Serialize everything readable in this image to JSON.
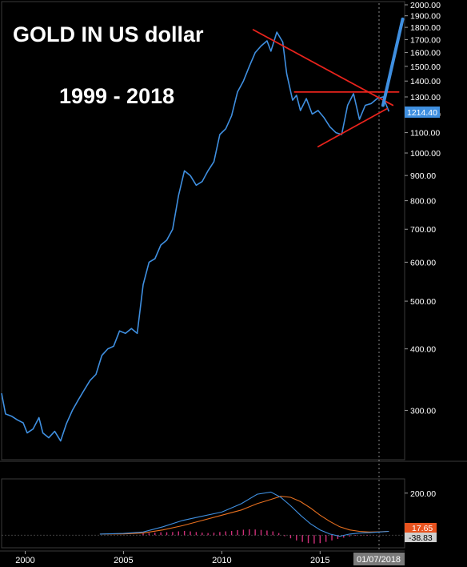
{
  "chart_data": {
    "type": "line",
    "title": "GOLD IN US dollar",
    "subtitle": "1999 - 2018",
    "y_scale": "log",
    "ylim": [
      240,
      2000
    ],
    "y_ticks": [
      "2000.00",
      "1900.00",
      "1800.00",
      "1700.00",
      "1600.00",
      "1500.00",
      "1400.00",
      "1300.00",
      "1200.00",
      "1100.00",
      "1000.00",
      "900.00",
      "800.00",
      "700.00",
      "600.00",
      "500.00",
      "400.00",
      "300.00"
    ],
    "y_tick_values": [
      2000,
      1900,
      1800,
      1700,
      1600,
      1500,
      1400,
      1300,
      1200,
      1100,
      1000,
      900,
      800,
      700,
      600,
      500,
      400,
      300
    ],
    "x_ticks": [
      "2000",
      "2005",
      "2010",
      "2015"
    ],
    "x_tick_values": [
      2000,
      2005,
      2010,
      2015
    ],
    "xlim": [
      1998.8,
      2019.3
    ],
    "cursor_date_label": "01/07/2018",
    "last_price_label": "1214.40",
    "last_price": 1214.4,
    "series": [
      {
        "x": [
          1998.8,
          1999.0,
          1999.3,
          1999.6,
          1999.9,
          2000.1,
          2000.4,
          2000.7,
          2000.9,
          2001.2,
          2001.5,
          2001.8,
          2002.1,
          2002.4,
          2002.7,
          2003.0,
          2003.3,
          2003.6,
          2003.9,
          2004.2,
          2004.5,
          2004.8,
          2005.1,
          2005.4,
          2005.7,
          2006.0,
          2006.3,
          2006.6,
          2006.9,
          2007.2,
          2007.5,
          2007.8,
          2008.1,
          2008.4,
          2008.7,
          2009.0,
          2009.3,
          2009.6,
          2009.9,
          2010.2,
          2010.5,
          2010.8,
          2011.1,
          2011.4,
          2011.7,
          2012.0,
          2012.3,
          2012.5,
          2012.8,
          2013.1,
          2013.3,
          2013.6,
          2013.8,
          2014.0,
          2014.3,
          2014.6,
          2014.9,
          2015.2,
          2015.5,
          2015.8,
          2016.1,
          2016.4,
          2016.7,
          2017.0,
          2017.3,
          2017.6,
          2017.9,
          2018.2,
          2018.5
        ],
        "y": [
          325,
          295,
          292,
          287,
          283,
          270,
          275,
          290,
          270,
          264,
          272,
          260,
          282,
          300,
          315,
          330,
          345,
          355,
          388,
          400,
          405,
          435,
          430,
          440,
          430,
          540,
          600,
          610,
          650,
          665,
          700,
          820,
          920,
          900,
          860,
          875,
          920,
          960,
          1090,
          1120,
          1190,
          1330,
          1400,
          1500,
          1600,
          1650,
          1690,
          1610,
          1760,
          1680,
          1450,
          1280,
          1310,
          1220,
          1290,
          1200,
          1220,
          1180,
          1130,
          1100,
          1090,
          1250,
          1320,
          1170,
          1250,
          1260,
          1290,
          1300,
          1214.4
        ]
      }
    ],
    "annotations": {
      "trend_upper": {
        "from": [
          2011.6,
          1780
        ],
        "to": [
          2018.7,
          1250
        ]
      },
      "trend_lower": {
        "from": [
          2014.9,
          1030
        ],
        "to": [
          2018.4,
          1230
        ]
      },
      "resistance": {
        "from": [
          2013.7,
          1330
        ],
        "to": [
          2019.0,
          1330
        ]
      },
      "projection": {
        "from": [
          2018.2,
          1250
        ],
        "to": [
          2019.2,
          1870
        ]
      }
    },
    "indicator": {
      "y_ticks": [
        "200.00"
      ],
      "y_tick_values": [
        200
      ],
      "ylim": [
        -60,
        260
      ],
      "value_labels": [
        "17.65",
        "-38.83"
      ],
      "line_a": {
        "x": [
          2003.8,
          2005,
          2006,
          2007,
          2008,
          2009,
          2010,
          2011,
          2011.8,
          2012.5,
          2013.0,
          2013.5,
          2014,
          2014.5,
          2015,
          2015.5,
          2016,
          2016.5,
          2017,
          2017.5,
          2018,
          2018.5
        ],
        "y": [
          5,
          8,
          15,
          40,
          70,
          90,
          110,
          150,
          195,
          205,
          180,
          140,
          95,
          55,
          25,
          5,
          -5,
          5,
          10,
          12,
          15,
          18
        ]
      },
      "line_b": {
        "x": [
          2003.8,
          2005,
          2006,
          2007,
          2008,
          2009,
          2010,
          2011,
          2011.8,
          2012.5,
          2013.0,
          2013.5,
          2014,
          2014.5,
          2015,
          2015.5,
          2016,
          2016.5,
          2017,
          2017.5,
          2018,
          2018.5
        ],
        "y": [
          5,
          6,
          10,
          25,
          45,
          70,
          95,
          120,
          150,
          170,
          185,
          180,
          160,
          130,
          95,
          65,
          40,
          25,
          18,
          15,
          16,
          18
        ]
      },
      "histogram": {
        "x": [
          2006.0,
          2006.3,
          2006.6,
          2006.9,
          2007.2,
          2007.5,
          2007.8,
          2008.1,
          2008.4,
          2008.7,
          2009.0,
          2009.3,
          2009.6,
          2009.9,
          2010.2,
          2010.5,
          2010.8,
          2011.1,
          2011.4,
          2011.7,
          2012.0,
          2012.3,
          2012.6,
          2012.9,
          2013.2,
          2013.5,
          2013.8,
          2014.1,
          2014.4,
          2014.7,
          2015.0,
          2015.3,
          2015.6,
          2015.9,
          2016.2,
          2016.5,
          2016.8,
          2017.1,
          2017.4,
          2017.7,
          2018.0
        ],
        "y": [
          8,
          10,
          12,
          14,
          14,
          15,
          18,
          20,
          18,
          15,
          12,
          10,
          12,
          15,
          18,
          20,
          24,
          26,
          28,
          27,
          25,
          22,
          18,
          10,
          -5,
          -15,
          -25,
          -32,
          -38,
          -40,
          -38,
          -32,
          -25,
          -18,
          -12,
          -6,
          -3,
          -2,
          -2,
          -1,
          -1
        ]
      }
    }
  }
}
